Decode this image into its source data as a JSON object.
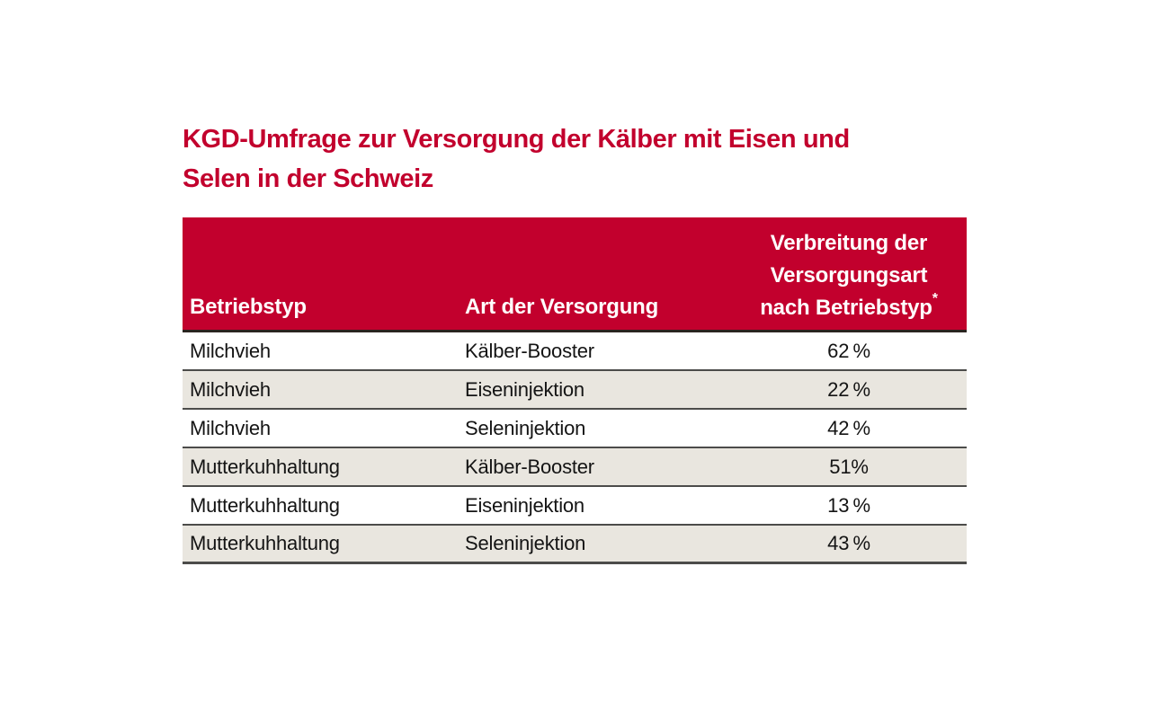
{
  "page": {
    "background": "#ffffff"
  },
  "title": {
    "line1": "KGD-Umfrage zur Versorgung der Kälber mit Eisen und",
    "line2": "Selen in der Schweiz",
    "color": "#C2002D"
  },
  "table": {
    "header": {
      "col1": "Betriebstyp",
      "col2": "Art der Versorgung",
      "col3_line1": "Verbreitung der",
      "col3_line2": "Versorgungsart",
      "col3_line3": "nach Betriebstyp",
      "col3_footnote_marker": "*",
      "background": "#C2002D",
      "text_color": "#ffffff"
    },
    "row_alt_background": "#E9E6DF",
    "separator_color": "#4c4c4a",
    "rows": [
      {
        "betriebstyp": "Milchvieh",
        "versorgung": "Kälber-Booster",
        "wert": "62 %"
      },
      {
        "betriebstyp": "Milchvieh",
        "versorgung": "Eiseninjektion",
        "wert": "22 %"
      },
      {
        "betriebstyp": "Milchvieh",
        "versorgung": "Seleninjektion",
        "wert": "42 %"
      },
      {
        "betriebstyp": "Mutterkuhhaltung",
        "versorgung": "Kälber-Booster",
        "wert": "51%"
      },
      {
        "betriebstyp": "Mutterkuhhaltung",
        "versorgung": "Eiseninjektion",
        "wert": "13 %"
      },
      {
        "betriebstyp": "Mutterkuhhaltung",
        "versorgung": "Seleninjektion",
        "wert": "43 %"
      }
    ]
  },
  "chart_data": {
    "type": "table",
    "title": "KGD-Umfrage zur Versorgung der Kälber mit Eisen und Selen in der Schweiz",
    "columns": [
      "Betriebstyp",
      "Art der Versorgung",
      "Verbreitung der Versorgungsart nach Betriebstyp*"
    ],
    "rows": [
      [
        "Milchvieh",
        "Kälber-Booster",
        "62 %"
      ],
      [
        "Milchvieh",
        "Eiseninjektion",
        "22 %"
      ],
      [
        "Milchvieh",
        "Seleninjektion",
        "42 %"
      ],
      [
        "Mutterkuhhaltung",
        "Kälber-Booster",
        "51 %"
      ],
      [
        "Mutterkuhhaltung",
        "Eiseninjektion",
        "13 %"
      ],
      [
        "Mutterkuhhaltung",
        "Seleninjektion",
        "43 %"
      ]
    ],
    "values_percent": [
      62,
      22,
      42,
      51,
      13,
      43
    ]
  }
}
